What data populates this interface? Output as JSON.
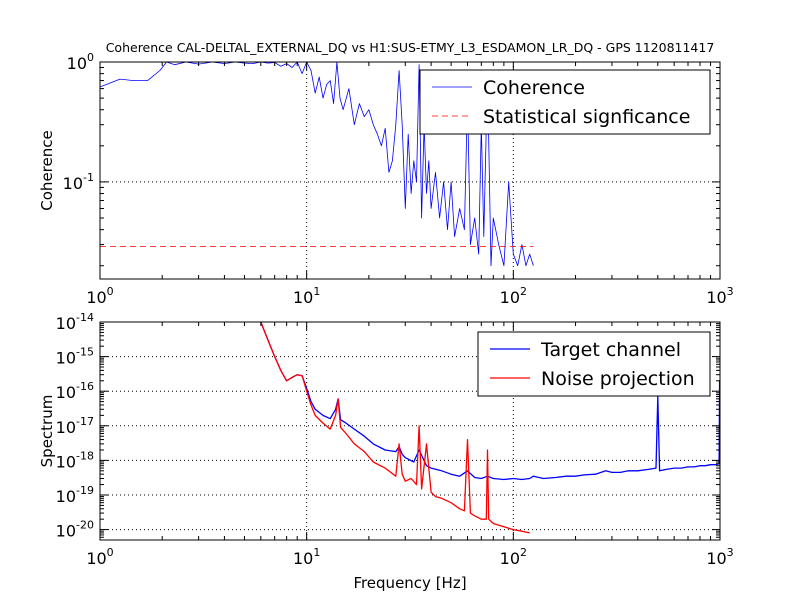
{
  "figure": {
    "title": "Coherence CAL-DELTAL_EXTERNAL_DQ vs H1:SUS-ETMY_L3_ESDAMON_LR_DQ - GPS 1120811417",
    "xlabel": "Frequency [Hz]"
  },
  "colors": {
    "coherence": "#0000ff",
    "significance": "#ff0000",
    "target": "#0000ff",
    "noise": "#ff0000",
    "grid": "#000000"
  },
  "chart_data": [
    {
      "type": "line",
      "title": "Coherence CAL-DELTAL_EXTERNAL_DQ vs H1:SUS-ETMY_L3_ESDAMON_LR_DQ - GPS 1120811417",
      "xlabel": "",
      "ylabel": "Coherence",
      "xscale": "log",
      "yscale": "log",
      "xlim": [
        1,
        1000
      ],
      "ylim": [
        0.0155,
        1
      ],
      "grid": true,
      "legend_position": "top-right",
      "x_ticks": [
        {
          "value": 1,
          "base": "10",
          "exp": "0"
        },
        {
          "value": 10,
          "base": "10",
          "exp": "1"
        },
        {
          "value": 100,
          "base": "10",
          "exp": "2"
        },
        {
          "value": 1000,
          "base": "10",
          "exp": "3"
        }
      ],
      "y_ticks": [
        {
          "value": 0.1,
          "base": "10",
          "exp": "-1"
        },
        {
          "value": 1,
          "base": "10",
          "exp": "0"
        }
      ],
      "series": [
        {
          "name": "Coherence",
          "style": "solid",
          "color": "#0000ff",
          "x": [
            1,
            1.1,
            1.25,
            1.45,
            1.7,
            1.95,
            2.1,
            2.3,
            2.6,
            3.0,
            3.5,
            4.0,
            4.5,
            5.0,
            5.5,
            6.0,
            6.5,
            7.0,
            7.5,
            8.0,
            8.5,
            9.0,
            9.5,
            10.0,
            10.5,
            11.0,
            11.5,
            12.0,
            12.5,
            13.0,
            13.5,
            14.0,
            14.5,
            15.0,
            16.0,
            17.0,
            18.0,
            19.0,
            20.0,
            21.0,
            22.0,
            23.0,
            24.0,
            25.0,
            26.0,
            27.0,
            28.0,
            29.0,
            30.0,
            31.0,
            32.0,
            33.0,
            34.0,
            35.0,
            36.0,
            37.0,
            38.0,
            39.0,
            40.0,
            42.0,
            44.0,
            46.0,
            48.0,
            50.0,
            52.0,
            55.0,
            58.0,
            60.0,
            62.0,
            65.0,
            68.0,
            70.0,
            72.0,
            75.0,
            78.0,
            80.0,
            85.0,
            90.0,
            95.0,
            100.0,
            105.0,
            110.0,
            115.0,
            120.0,
            125.0
          ],
          "y": [
            0.62,
            0.66,
            0.72,
            0.7,
            0.7,
            0.85,
            1.0,
            0.95,
            1.0,
            0.96,
            1.0,
            0.97,
            1.0,
            0.98,
            0.97,
            1.0,
            0.98,
            0.99,
            0.92,
            0.97,
            0.9,
            1.0,
            0.8,
            1.0,
            0.85,
            0.55,
            0.75,
            0.5,
            0.65,
            0.7,
            0.45,
            1.0,
            0.5,
            0.4,
            0.6,
            0.3,
            0.45,
            0.35,
            0.4,
            0.3,
            0.25,
            0.2,
            0.28,
            0.12,
            0.15,
            0.3,
            0.85,
            0.3,
            0.06,
            0.25,
            0.08,
            0.15,
            0.1,
            0.95,
            0.05,
            0.3,
            0.08,
            0.15,
            0.06,
            0.12,
            0.05,
            0.1,
            0.04,
            0.1,
            0.035,
            0.06,
            0.04,
            0.5,
            0.03,
            0.05,
            0.025,
            0.3,
            0.035,
            0.8,
            0.02,
            0.05,
            0.03,
            0.02,
            0.1,
            0.025,
            0.02,
            0.03,
            0.02,
            0.025,
            0.02
          ]
        },
        {
          "name": "Statistical signficance",
          "style": "dashed",
          "color": "#ff0000",
          "x": [
            1,
            125
          ],
          "y": [
            0.029,
            0.029
          ]
        }
      ]
    },
    {
      "type": "line",
      "title": "",
      "xlabel": "Frequency [Hz]",
      "ylabel": "Spectrum",
      "xscale": "log",
      "yscale": "log",
      "xlim": [
        1,
        1000
      ],
      "ylim": [
        5e-21,
        1e-14
      ],
      "grid": true,
      "legend_position": "top-right",
      "x_ticks": [
        {
          "value": 1,
          "base": "10",
          "exp": "0"
        },
        {
          "value": 10,
          "base": "10",
          "exp": "1"
        },
        {
          "value": 100,
          "base": "10",
          "exp": "2"
        },
        {
          "value": 1000,
          "base": "10",
          "exp": "3"
        }
      ],
      "y_ticks": [
        {
          "value": 1e-20,
          "base": "10",
          "exp": "-20"
        },
        {
          "value": 1e-19,
          "base": "10",
          "exp": "-19"
        },
        {
          "value": 1e-18,
          "base": "10",
          "exp": "-18"
        },
        {
          "value": 1e-17,
          "base": "10",
          "exp": "-17"
        },
        {
          "value": 1e-16,
          "base": "10",
          "exp": "-16"
        },
        {
          "value": 1e-15,
          "base": "10",
          "exp": "-15"
        },
        {
          "value": 1e-14,
          "base": "10",
          "exp": "-14"
        }
      ],
      "series": [
        {
          "name": "Target channel",
          "style": "solid",
          "color": "#0000ff",
          "x": [
            6.0,
            6.5,
            7.0,
            7.5,
            8.0,
            8.5,
            9.0,
            9.5,
            10.0,
            10.5,
            11.0,
            12.0,
            13.0,
            13.8,
            14.2,
            14.6,
            15.5,
            17.0,
            19.0,
            21.0,
            24.0,
            27.0,
            28.0,
            29.0,
            30.0,
            33.0,
            35.0,
            38.0,
            40.0,
            45.0,
            50.0,
            55.0,
            60.0,
            65.0,
            70.0,
            75.0,
            80.0,
            90.0,
            100.0,
            110.0,
            120.0,
            125.0,
            140.0,
            160.0,
            180.0,
            200.0,
            220.0,
            250.0,
            280.0,
            300.0,
            330.0,
            360.0,
            400.0,
            450.0,
            490.0,
            500.0,
            510.0,
            550.0,
            600.0,
            650.0,
            700.0,
            750.0,
            800.0,
            850.0,
            900.0,
            950.0,
            990.0,
            995.0,
            1000.0
          ],
          "y": [
            1e-14,
            3e-15,
            1e-15,
            4e-16,
            2e-16,
            2.5e-16,
            3e-16,
            2.8e-16,
            1.2e-16,
            5e-17,
            3e-17,
            2e-17,
            1.6e-17,
            3e-17,
            6e-17,
            1.5e-17,
            1.2e-17,
            8e-18,
            5e-18,
            3e-18,
            2e-18,
            1.8e-18,
            2.5e-18,
            1.5e-18,
            1.2e-18,
            9e-19,
            2e-18,
            7e-19,
            6e-19,
            5e-19,
            4e-19,
            3.5e-19,
            5e-19,
            3.2e-19,
            3e-19,
            3.5e-19,
            3e-19,
            2.8e-19,
            3e-19,
            2.8e-19,
            3e-19,
            3.5e-19,
            3e-19,
            3.2e-19,
            3.5e-19,
            3.5e-19,
            3.8e-19,
            4e-19,
            5e-19,
            4.5e-19,
            4.5e-19,
            5e-19,
            5e-19,
            5.5e-19,
            6e-19,
            7e-17,
            5e-19,
            5.5e-19,
            6e-19,
            6e-19,
            6.5e-19,
            6.5e-19,
            7e-19,
            7e-19,
            7.5e-19,
            7.5e-19,
            8e-19,
            2e-16,
            8e-19
          ]
        },
        {
          "name": "Noise projection",
          "style": "solid",
          "color": "#ff0000",
          "x": [
            6.0,
            6.5,
            7.0,
            7.5,
            8.0,
            8.5,
            9.0,
            9.5,
            10.0,
            10.5,
            11.0,
            12.0,
            13.0,
            13.8,
            14.2,
            14.6,
            15.5,
            17.0,
            19.0,
            21.0,
            24.0,
            27.0,
            28.0,
            29.0,
            30.0,
            32.0,
            34.0,
            35.0,
            36.0,
            38.0,
            40.0,
            42.0,
            45.0,
            50.0,
            55.0,
            58.0,
            60.0,
            62.0,
            65.0,
            70.0,
            74.0,
            75.0,
            76.0,
            80.0,
            90.0,
            100.0,
            110.0,
            120.0
          ],
          "y": [
            1e-14,
            3e-15,
            1e-15,
            4e-16,
            2e-16,
            2.5e-16,
            3e-16,
            2.8e-16,
            1e-16,
            4e-17,
            2e-17,
            1.2e-17,
            8e-18,
            2e-17,
            6e-17,
            9e-18,
            6e-18,
            3e-18,
            1.8e-18,
            9e-19,
            6e-19,
            3.5e-19,
            3e-18,
            4e-19,
            2.5e-19,
            3e-19,
            2e-19,
            1e-17,
            1.5e-19,
            3e-18,
            1.2e-19,
            9e-20,
            8e-20,
            6e-20,
            4e-20,
            3.5e-20,
            4e-18,
            3e-20,
            2.5e-20,
            2e-20,
            2e-20,
            2e-18,
            2e-20,
            1.5e-20,
            1.2e-20,
            1e-20,
            9e-21,
            8e-21
          ]
        }
      ]
    }
  ]
}
